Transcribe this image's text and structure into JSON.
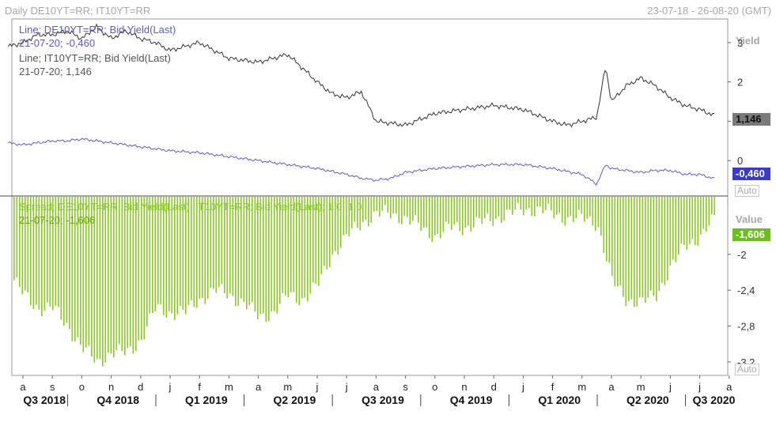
{
  "header": {
    "title": "Daily DE10YT=RR; IT10YT=RR",
    "range": "23-07-18 - 26-08-20 (GMT)"
  },
  "top_panel": {
    "legend": {
      "de_name": "Line; DE10YT=RR; Bid Yield(Last)",
      "de_value": "21-07-20; -0,460",
      "it_name": "Line; IT10YT=RR; Bid Yield(Last)",
      "it_value": "21-07-20; 1,146"
    },
    "axis_title": "Yield",
    "ticks": [
      "3",
      "2",
      "1",
      "0"
    ],
    "it_tag": "1,146",
    "de_tag": "-0,460",
    "auto": "Auto"
  },
  "bottom_panel": {
    "legend": {
      "name": "Spread; DE10YT=RR; Bid Yield(Last); IT10YT=RR; Bid Yield(Last);  1,0; 1,0",
      "value": "21-07-20; -1,606"
    },
    "axis_title": "Value",
    "ticks": [
      "-2",
      "-2,4",
      "-2,8",
      "-3,2"
    ],
    "tag": "-1,606",
    "auto": "Auto"
  },
  "x_axis": {
    "months": [
      "a",
      "s",
      "o",
      "n",
      "d",
      "j",
      "f",
      "m",
      "a",
      "m",
      "j",
      "j",
      "a",
      "s",
      "o",
      "n",
      "d",
      "j",
      "f",
      "m",
      "a",
      "m",
      "j",
      "j",
      "a"
    ],
    "quarters": [
      "Q3 2018",
      "Q4 2018",
      "Q1 2019",
      "Q2 2019",
      "Q3 2019",
      "Q4 2019",
      "Q1 2020",
      "Q2 2020",
      "Q3 2020"
    ]
  },
  "colors": {
    "de": "#5a5ad2",
    "it": "#333333",
    "spread": "#88cc22",
    "de_tag_bg": "#3a3acc",
    "it_tag_bg": "#7a7a7a",
    "spread_tag_bg": "#6bbf1a",
    "legend_it": "#555555"
  },
  "chart_data": [
    {
      "type": "line",
      "x_unit": "month index (0 = Aug 2018)",
      "ylim": [
        -0.9,
        3.6
      ],
      "ylabel": "Yield",
      "series": [
        {
          "name": "Line; DE10YT=RR; Bid Yield(Last)",
          "x": [
            -0.5,
            0,
            1,
            1.5,
            2,
            3,
            4,
            5,
            6,
            7,
            8,
            9,
            10,
            11,
            11.5,
            12,
            12.5,
            13,
            13.5,
            14,
            15,
            16,
            17,
            18,
            19,
            19.3,
            19.5,
            19.8,
            20,
            21,
            21.5,
            22,
            22.5,
            23,
            23.5
          ],
          "y": [
            0.45,
            0.4,
            0.5,
            0.5,
            0.55,
            0.45,
            0.35,
            0.25,
            0.2,
            0.1,
            0.0,
            -0.1,
            -0.2,
            -0.35,
            -0.45,
            -0.5,
            -0.45,
            -0.3,
            -0.25,
            -0.2,
            -0.15,
            -0.1,
            -0.1,
            -0.2,
            -0.35,
            -0.5,
            -0.6,
            -0.1,
            -0.2,
            -0.3,
            -0.25,
            -0.25,
            -0.35,
            -0.35,
            -0.46
          ]
        },
        {
          "name": "Line; IT10YT=RR; Bid Yield(Last)",
          "x": [
            -0.5,
            0,
            0.5,
            1,
            1.5,
            2,
            2.5,
            3,
            3.5,
            4,
            4.5,
            5,
            5.5,
            6,
            7,
            8,
            8.5,
            9,
            10,
            10.5,
            11,
            11.5,
            12,
            13,
            14,
            15,
            16,
            17,
            18,
            18.5,
            19,
            19.5,
            19.8,
            20,
            20.5,
            21,
            21.5,
            22,
            22.5,
            23,
            23.5
          ],
          "y": [
            2.9,
            3.0,
            3.2,
            3.2,
            3.3,
            3.1,
            3.4,
            3.1,
            3.3,
            3.1,
            3.0,
            2.8,
            2.9,
            3.0,
            2.6,
            2.5,
            2.6,
            2.7,
            2.0,
            1.7,
            1.6,
            1.75,
            1.0,
            0.9,
            1.2,
            1.3,
            1.4,
            1.3,
            1.0,
            0.9,
            1.0,
            1.1,
            2.4,
            1.5,
            1.9,
            2.1,
            1.9,
            1.6,
            1.4,
            1.3,
            1.146
          ]
        }
      ]
    },
    {
      "type": "bar",
      "x_unit": "month index (0 = Aug 2018)",
      "ylim": [
        -3.35,
        -1.35
      ],
      "ylabel": "Value",
      "series": [
        {
          "name": "Spread; DE10YT=RR; Bid Yield(Last); IT10YT=RR; Bid Yield(Last);  1,0; 1,0",
          "x": [
            -0.5,
            0,
            0.5,
            1,
            1.5,
            2,
            2.5,
            3,
            3.5,
            4,
            4.5,
            5,
            5.5,
            6,
            6.5,
            7,
            7.5,
            8,
            8.5,
            9,
            9.5,
            10,
            10.5,
            11,
            11.5,
            12,
            12.5,
            13,
            13.5,
            14,
            14.5,
            15,
            15.5,
            16,
            16.5,
            17,
            17.5,
            18,
            18.5,
            19,
            19.5,
            20,
            20.5,
            21,
            21.5,
            22,
            22.5,
            23,
            23.5
          ],
          "y": [
            -2.2,
            -2.45,
            -2.6,
            -2.6,
            -2.8,
            -3.05,
            -3.2,
            -3.1,
            -3.1,
            -2.95,
            -2.6,
            -2.65,
            -2.65,
            -2.5,
            -2.4,
            -2.45,
            -2.55,
            -2.7,
            -2.65,
            -2.45,
            -2.5,
            -2.35,
            -2.0,
            -1.8,
            -1.65,
            -1.55,
            -1.55,
            -1.6,
            -1.7,
            -1.8,
            -1.7,
            -1.7,
            -1.65,
            -1.6,
            -1.55,
            -1.5,
            -1.5,
            -1.55,
            -1.6,
            -1.6,
            -1.65,
            -2.3,
            -2.5,
            -2.55,
            -2.45,
            -2.15,
            -1.9,
            -1.8,
            -1.606
          ]
        }
      ]
    }
  ]
}
